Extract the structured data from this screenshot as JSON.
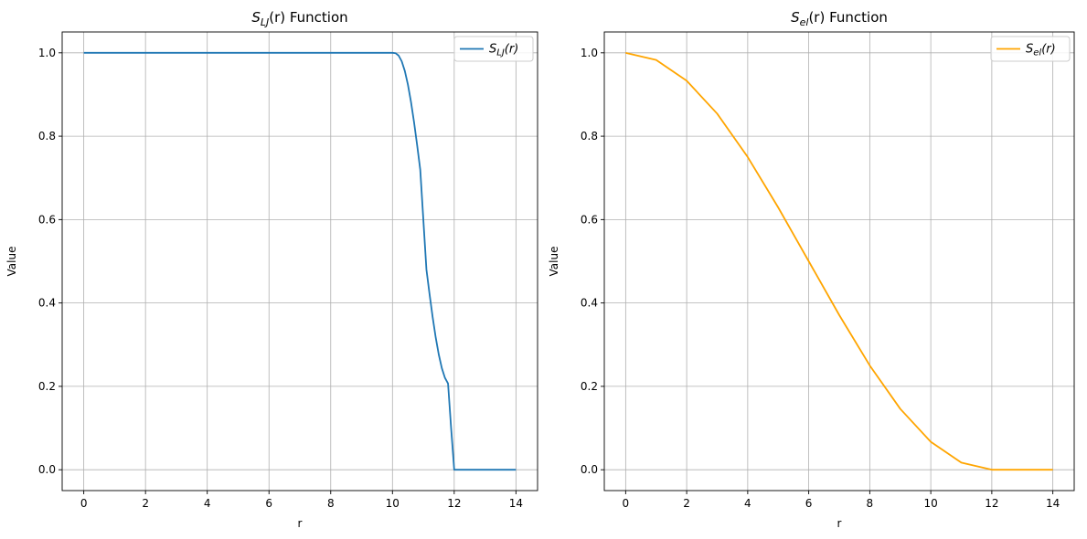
{
  "chart_data": [
    {
      "type": "line",
      "title_main": "S",
      "title_sub": "LJ",
      "title_rest": "(r) Function",
      "xlabel": "r",
      "ylabel": "Value",
      "xlim": [
        -0.7,
        14.7
      ],
      "ylim": [
        -0.05,
        1.05
      ],
      "xticks": [
        0,
        2,
        4,
        6,
        8,
        10,
        12,
        14
      ],
      "yticks": [
        0.0,
        0.2,
        0.4,
        0.6,
        0.8,
        1.0
      ],
      "xtick_labels": [
        "0",
        "2",
        "4",
        "6",
        "8",
        "10",
        "12",
        "14"
      ],
      "ytick_labels": [
        "0.0",
        "0.2",
        "0.4",
        "0.6",
        "0.8",
        "1.0"
      ],
      "grid": true,
      "legend_position": "top-right",
      "series": [
        {
          "name_main": "S",
          "name_sub": "LJ",
          "name_rest": "(r)",
          "color": "#1f77b4",
          "x": [
            0,
            10,
            10.1,
            10.2,
            10.3,
            10.4,
            10.5,
            10.6,
            10.7,
            10.8,
            10.9,
            11.0,
            11.1,
            11.2,
            11.3,
            11.4,
            11.5,
            11.6,
            11.7,
            11.8,
            11.9,
            12.0,
            14
          ],
          "y": [
            1.0,
            1.0,
            0.9991,
            0.9933,
            0.9796,
            0.9565,
            0.9238,
            0.8822,
            0.833,
            0.7781,
            0.7196,
            0.6,
            0.4803,
            0.4219,
            0.3669,
            0.3177,
            0.2762,
            0.2435,
            0.2204,
            0.2067,
            0.1,
            0.0,
            0.0
          ]
        }
      ]
    },
    {
      "type": "line",
      "title_main": "S",
      "title_sub": "el",
      "title_rest": "(r) Function",
      "xlabel": "r",
      "ylabel": "Value",
      "xlim": [
        -0.7,
        14.7
      ],
      "ylim": [
        -0.05,
        1.05
      ],
      "xticks": [
        0,
        2,
        4,
        6,
        8,
        10,
        12,
        14
      ],
      "yticks": [
        0.0,
        0.2,
        0.4,
        0.6,
        0.8,
        1.0
      ],
      "xtick_labels": [
        "0",
        "2",
        "4",
        "6",
        "8",
        "10",
        "12",
        "14"
      ],
      "ytick_labels": [
        "0.0",
        "0.2",
        "0.4",
        "0.6",
        "0.8",
        "1.0"
      ],
      "grid": true,
      "legend_position": "top-right",
      "series": [
        {
          "name_main": "S",
          "name_sub": "el",
          "name_rest": "(r)",
          "color": "#ffa500",
          "x": [
            0,
            1,
            2,
            3,
            4,
            5,
            6,
            7,
            8,
            9,
            10,
            11,
            12,
            13,
            14
          ],
          "y": [
            1.0,
            0.983,
            0.933,
            0.854,
            0.75,
            0.629,
            0.5,
            0.371,
            0.25,
            0.146,
            0.067,
            0.017,
            0.0,
            0.0,
            0.0
          ]
        }
      ]
    }
  ]
}
